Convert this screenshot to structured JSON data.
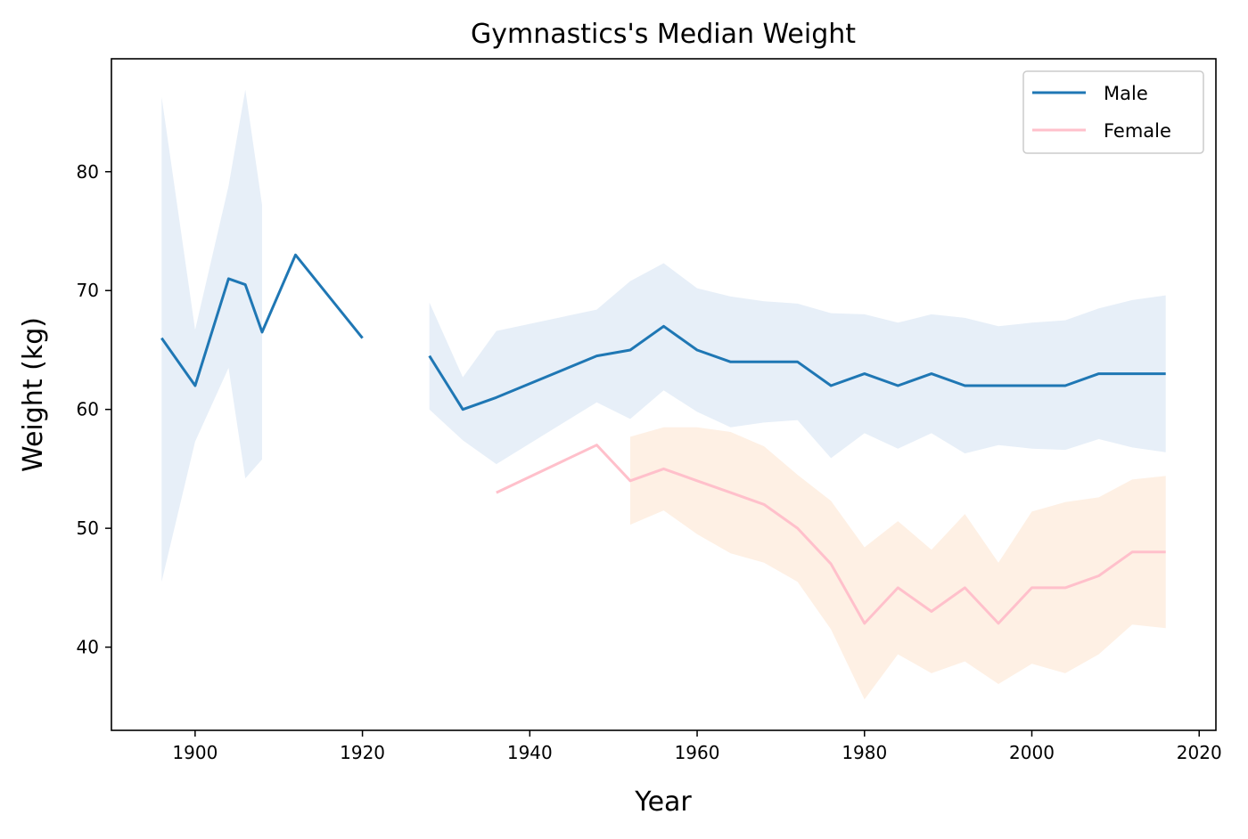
{
  "chart_data": {
    "type": "line",
    "title": "Gymnastics's Median Weight",
    "xlabel": "Year",
    "ylabel": "Weight (kg)",
    "xlim": [
      1890,
      2022
    ],
    "ylim": [
      33,
      89.5
    ],
    "xticks": [
      1900,
      1920,
      1940,
      1960,
      1980,
      2000,
      2020
    ],
    "yticks": [
      40,
      50,
      60,
      70,
      80
    ],
    "legend_position": "upper right",
    "grid": false,
    "series": [
      {
        "name": "Male",
        "color": "#1f77b4",
        "band_color": "#e7eff8",
        "segments": [
          {
            "x": [
              1896,
              1900,
              1904,
              1906,
              1908,
              1912,
              1920
            ],
            "y": [
              66,
              62,
              71,
              70.5,
              66.5,
              73,
              66
            ]
          },
          {
            "x": [
              1928,
              1932,
              1936,
              1948,
              1952,
              1956,
              1960,
              1964,
              1968,
              1972,
              1976,
              1980,
              1984,
              1988,
              1992,
              1996,
              2000,
              2004,
              2008,
              2012,
              2016
            ],
            "y": [
              64.5,
              60,
              61,
              64.5,
              65,
              67,
              65,
              64,
              64,
              64,
              62,
              63,
              62,
              63,
              62,
              62,
              62,
              62,
              63,
              63,
              63
            ]
          }
        ],
        "bands": [
          {
            "x": [
              1896,
              1900,
              1904,
              1906,
              1908
            ],
            "upper": [
              86.3,
              66.7,
              78.8,
              86.9,
              77.2
            ],
            "lower": [
              45.5,
              57.3,
              63.5,
              54.2,
              55.8
            ]
          },
          {
            "x": [
              1928,
              1932,
              1936,
              1948,
              1952,
              1956,
              1960,
              1964,
              1968,
              1972,
              1976,
              1980,
              1984,
              1988,
              1992,
              1996,
              2000,
              2004,
              2008,
              2012,
              2016
            ],
            "upper": [
              69,
              62.7,
              66.6,
              68.4,
              70.8,
              72.3,
              70.2,
              69.5,
              69.1,
              68.9,
              68.1,
              68,
              67.3,
              68,
              67.7,
              67,
              67.3,
              67.5,
              68.5,
              69.2,
              69.6
            ],
            "lower": [
              60,
              57.4,
              55.4,
              60.6,
              59.2,
              61.6,
              59.8,
              58.5,
              58.9,
              59.1,
              55.9,
              58,
              56.7,
              58,
              56.3,
              57,
              56.7,
              56.6,
              57.5,
              56.8,
              56.4
            ]
          }
        ]
      },
      {
        "name": "Female",
        "color": "#ffc0cb",
        "band_color": "#fef0e4",
        "segments": [
          {
            "x": [
              1936,
              1948,
              1952,
              1956,
              1960,
              1964,
              1968,
              1972,
              1976,
              1980,
              1984,
              1988,
              1992,
              1996,
              2000,
              2004,
              2008,
              2012,
              2016
            ],
            "y": [
              53,
              57,
              54,
              55,
              54,
              53,
              52,
              50,
              47,
              42,
              45,
              43,
              45,
              42,
              45,
              45,
              46,
              48,
              48
            ]
          }
        ],
        "bands": [
          {
            "x": [
              1952,
              1956,
              1960,
              1964,
              1968,
              1972,
              1976,
              1980,
              1984,
              1988,
              1992,
              1996,
              2000,
              2004,
              2008,
              2012,
              2016
            ],
            "upper": [
              57.7,
              58.5,
              58.5,
              58.1,
              56.9,
              54.5,
              52.3,
              48.4,
              50.6,
              48.2,
              51.2,
              47.1,
              51.4,
              52.2,
              52.6,
              54.1,
              54.4
            ],
            "lower": [
              50.3,
              51.5,
              49.5,
              47.9,
              47.1,
              45.5,
              41.5,
              35.6,
              39.4,
              37.8,
              38.8,
              36.9,
              38.6,
              37.8,
              39.4,
              41.9,
              41.6
            ]
          }
        ]
      }
    ]
  }
}
